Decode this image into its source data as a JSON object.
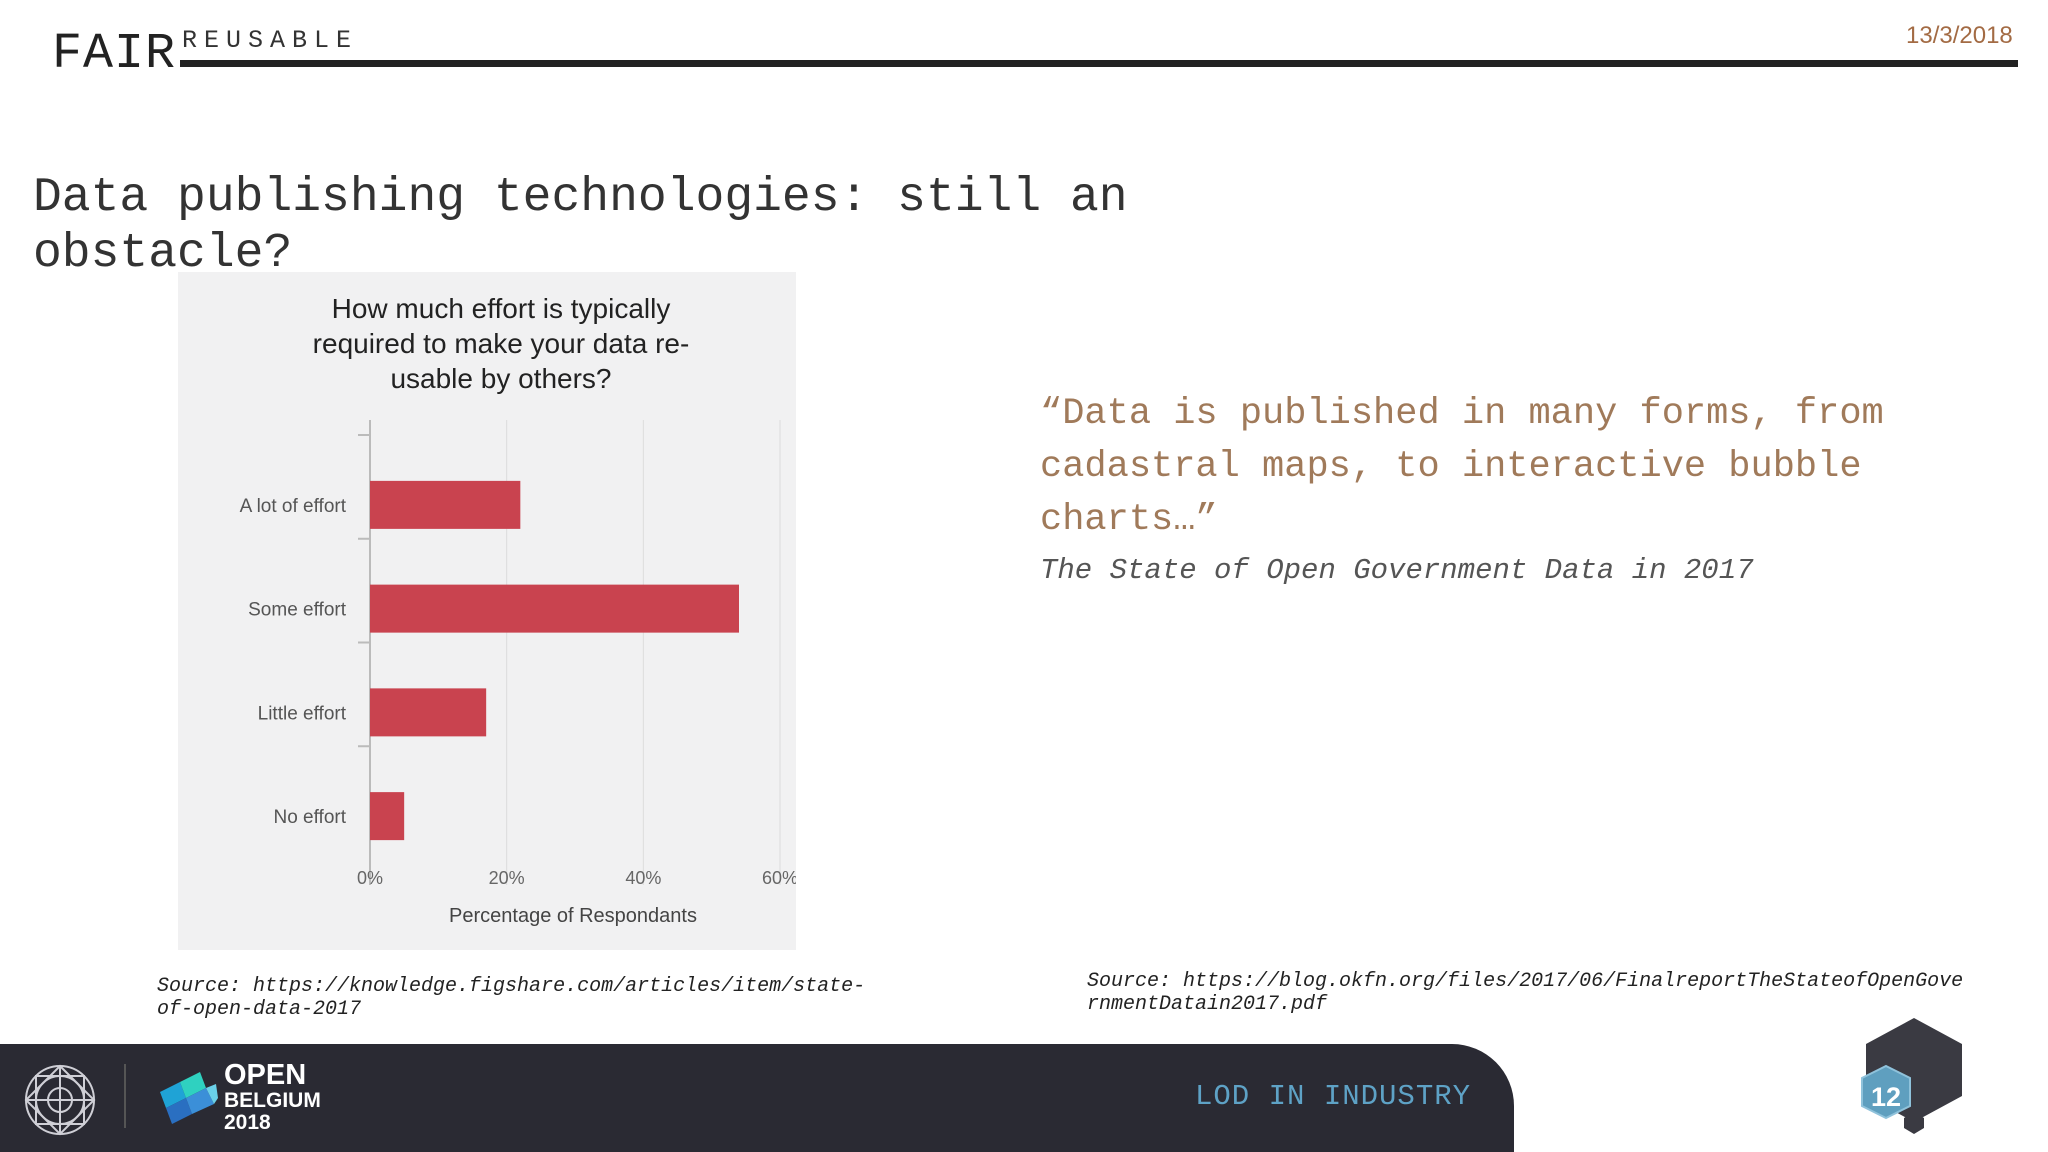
{
  "header": {
    "left_word": "FAIR",
    "section": "REUSABLE",
    "date": "13/3/2018"
  },
  "slide": {
    "title": "Data publishing technologies: still an obstacle?"
  },
  "chart_data": {
    "type": "bar",
    "orientation": "horizontal",
    "title": "How much effort is typically required to make your data re-usable by others?",
    "title_lines": [
      "How much effort is typically",
      "required to make your data re-",
      "usable by others?"
    ],
    "categories": [
      "A lot of effort",
      "Some effort",
      "Little effort",
      "No effort"
    ],
    "values": [
      22,
      54,
      17,
      5
    ],
    "xlabel": "Percentage of Respondants",
    "xlim": [
      0,
      60
    ],
    "ticks": [
      "0%",
      "20%",
      "40%",
      "60%"
    ],
    "grid": true,
    "bar_color": "#c9434f"
  },
  "quote": {
    "text": "“Data is published in many forms, from cadastral maps, to interactive bubble charts…”",
    "source": "The State of Open Government Data in 2017"
  },
  "sources": {
    "left": "Source: https://knowledge.figshare.com/articles/item/state-of-open-data-2017",
    "right": "Source: https://blog.okfn.org/files/2017/06/FinalreportTheStateofOpenGovernmentDatain2017.pdf"
  },
  "footer": {
    "logo_open": "OPEN",
    "logo_belgium": "BELGIUM",
    "logo_year": "2018",
    "title": "LOD IN INDUSTRY",
    "page_number": "12"
  },
  "colors": {
    "accent_brown": "#a07a5a",
    "footer_bg": "#2a2a33",
    "footer_title": "#5ea2c6",
    "page_badge": "#5f9fbf"
  }
}
